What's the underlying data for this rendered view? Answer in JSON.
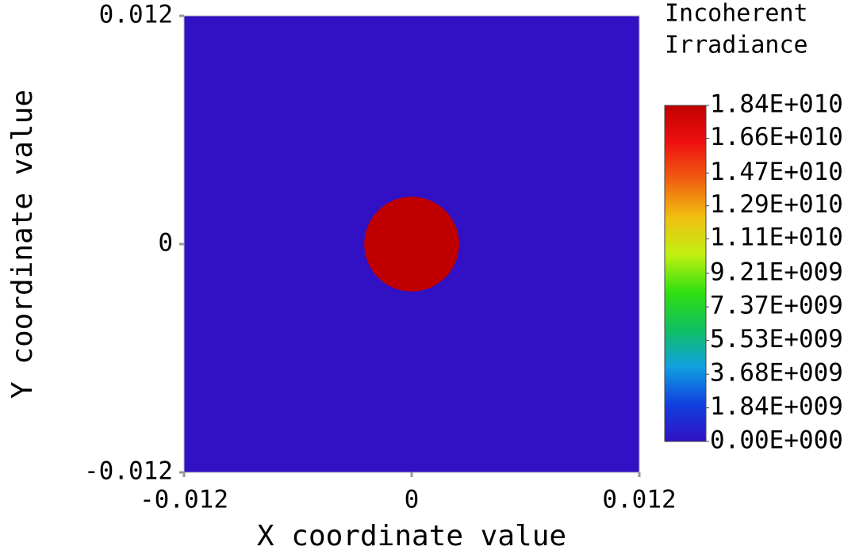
{
  "chart_data": {
    "type": "heatmap",
    "x_label": "X coordinate value",
    "y_label": "Y coordinate value",
    "colorbar_title": [
      "Incoherent",
      "Irradiance"
    ],
    "xlim": [
      -0.012,
      0.012
    ],
    "ylim": [
      -0.012,
      0.012
    ],
    "xticks": [
      -0.012,
      0,
      0.012
    ],
    "yticks": [
      -0.012,
      0,
      0.012
    ],
    "background_value": 0,
    "spot": {
      "x": 0,
      "y": 0,
      "radius": 0.0025,
      "value": 18400000000
    },
    "clim": [
      0,
      18400000000
    ],
    "colormap": [
      "#3210c4",
      "#1040e0",
      "#10a0e0",
      "#10c060",
      "#30e010",
      "#c0f010",
      "#f0c010",
      "#f06010",
      "#f01010",
      "#c00000"
    ],
    "colorbar_ticks": [
      {
        "value": 0,
        "label": "0.00E+000"
      },
      {
        "value": 1840000000,
        "label": "1.84E+009"
      },
      {
        "value": 3680000000,
        "label": "3.68E+009"
      },
      {
        "value": 5530000000,
        "label": "5.53E+009"
      },
      {
        "value": 7370000000,
        "label": "7.37E+009"
      },
      {
        "value": 9210000000,
        "label": "9.21E+009"
      },
      {
        "value": 11100000000,
        "label": "1.11E+010"
      },
      {
        "value": 12900000000,
        "label": "1.29E+010"
      },
      {
        "value": 14700000000,
        "label": "1.47E+010"
      },
      {
        "value": 16600000000,
        "label": "1.66E+010"
      },
      {
        "value": 18400000000,
        "label": "1.84E+010"
      }
    ]
  }
}
